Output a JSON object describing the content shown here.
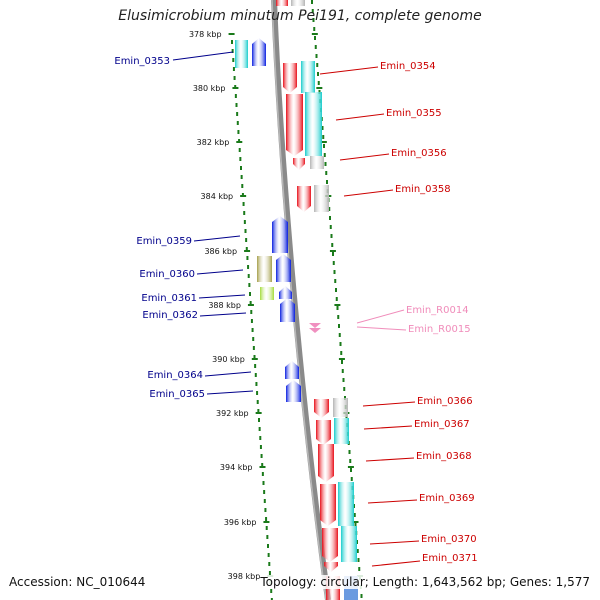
{
  "title": "Elusimicrobium minutum Pei191, complete genome",
  "accession_text": "Accession: NC_010644",
  "summary_text": "Topology: circular; Length: 1,643,562 bp; Genes: 1,577",
  "colors": {
    "cds_forward": "#e8101a",
    "cds_reverse": "#0a1fe0",
    "backbone": "#888888",
    "dots": "#1a7a1a",
    "label_forward": "#cc0000",
    "label_reverse": "#00008b",
    "label_rna": "#f08cba",
    "cog_cyan": "#19cccc",
    "cog_gray": "#b4b4b4",
    "cog_olive": "#a6a04c",
    "cog_lime": "#a4dc3c",
    "rna": "#f090c0"
  },
  "ticks": [
    "378 kbp",
    "380 kbp",
    "382 kbp",
    "384 kbp",
    "386 kbp",
    "388 kbp",
    "390 kbp",
    "392 kbp",
    "394 kbp",
    "396 kbp",
    "398 kbp"
  ],
  "genes": [
    {
      "name": "Emin_0353",
      "strand": "reverse"
    },
    {
      "name": "Emin_0354",
      "strand": "forward"
    },
    {
      "name": "Emin_0355",
      "strand": "forward"
    },
    {
      "name": "Emin_0356",
      "strand": "forward"
    },
    {
      "name": "Emin_0358",
      "strand": "forward"
    },
    {
      "name": "Emin_0359",
      "strand": "reverse"
    },
    {
      "name": "Emin_0360",
      "strand": "reverse"
    },
    {
      "name": "Emin_0361",
      "strand": "reverse"
    },
    {
      "name": "Emin_0362",
      "strand": "reverse"
    },
    {
      "name": "Emin_R0014",
      "strand": "rna"
    },
    {
      "name": "Emin_R0015",
      "strand": "rna"
    },
    {
      "name": "Emin_0364",
      "strand": "reverse"
    },
    {
      "name": "Emin_0365",
      "strand": "reverse"
    },
    {
      "name": "Emin_0366",
      "strand": "forward"
    },
    {
      "name": "Emin_0367",
      "strand": "forward"
    },
    {
      "name": "Emin_0368",
      "strand": "forward"
    },
    {
      "name": "Emin_0369",
      "strand": "forward"
    },
    {
      "name": "Emin_0370",
      "strand": "forward"
    },
    {
      "name": "Emin_0371",
      "strand": "forward"
    }
  ]
}
